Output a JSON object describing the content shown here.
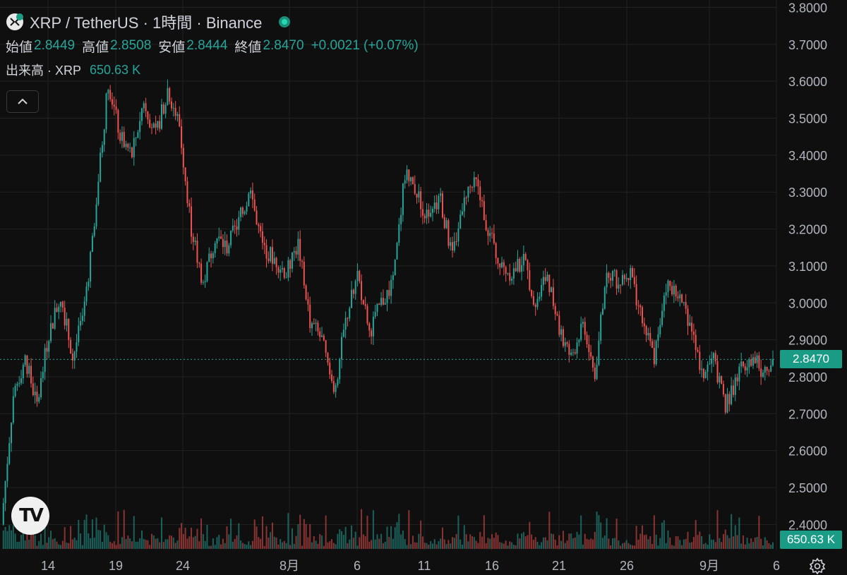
{
  "header": {
    "symbol_title": "XRP / TetherUS · 1時間 · Binance",
    "ohlc": [
      {
        "label": "始値",
        "value": "2.8449"
      },
      {
        "label": "高値",
        "value": "2.8508"
      },
      {
        "label": "安値",
        "value": "2.8444"
      },
      {
        "label": "終値",
        "value": "2.8470"
      }
    ],
    "change": "+0.0021 (+0.07%)",
    "volume_label": "出来高 · XRP",
    "volume_value": "650.63 K",
    "icons": [
      "symbol-logo-icon",
      "live-status-icon",
      "chevron-up-icon",
      "tradingview-logo-icon",
      "settings-gear-icon"
    ]
  },
  "colors": {
    "up": "#26a69a",
    "down": "#ef5350",
    "background": "#0f0f0f",
    "grid": "#222222",
    "price_tag": "#1a9b86"
  },
  "chart_data": {
    "type": "candlestick",
    "title": "XRP / TetherUS · 1時間 · Binance",
    "interval": "1時間",
    "y_axis": {
      "position": "right",
      "min": 2.33,
      "max": 3.82,
      "ticks": [
        "3.8000",
        "3.7000",
        "3.6000",
        "3.5000",
        "3.4000",
        "3.3000",
        "3.2000",
        "3.1000",
        "3.0000",
        "2.9000",
        "2.8000",
        "2.7000",
        "2.6000",
        "2.5000",
        "2.4000"
      ]
    },
    "x_axis": {
      "tick_labels": [
        "14",
        "19",
        "24",
        "8月",
        "6",
        "11",
        "16",
        "21",
        "26",
        "9月",
        "6"
      ]
    },
    "grid": true,
    "last_price": "2.8470",
    "last_volume": "650.63 K",
    "price_path": [
      [
        "14",
        2.4
      ],
      [
        "14",
        2.75
      ],
      [
        "14",
        2.85
      ],
      [
        "14",
        2.72
      ],
      [
        "14",
        2.92
      ],
      [
        "14",
        3.02
      ],
      [
        "14",
        2.85
      ],
      [
        "19",
        2.98
      ],
      [
        "19",
        3.28
      ],
      [
        "19",
        3.6
      ],
      [
        "19",
        3.45
      ],
      [
        "19",
        3.4
      ],
      [
        "19",
        3.55
      ],
      [
        "19",
        3.45
      ],
      [
        "24",
        3.58
      ],
      [
        "24",
        3.48
      ],
      [
        "24",
        3.2
      ],
      [
        "24",
        3.05
      ],
      [
        "24",
        3.18
      ],
      [
        "24",
        3.15
      ],
      [
        "24",
        3.22
      ],
      [
        "24",
        3.3
      ],
      [
        "24",
        3.15
      ],
      [
        "8月",
        3.12
      ],
      [
        "8月",
        3.08
      ],
      [
        "8月",
        3.16
      ],
      [
        "8月",
        2.95
      ],
      [
        "8月",
        2.9
      ],
      [
        "8月",
        2.75
      ],
      [
        "6",
        2.95
      ],
      [
        "6",
        3.08
      ],
      [
        "6",
        2.92
      ],
      [
        "6",
        3.0
      ],
      [
        "6",
        3.05
      ],
      [
        "6",
        3.35
      ],
      [
        "11",
        3.3
      ],
      [
        "11",
        3.22
      ],
      [
        "11",
        3.28
      ],
      [
        "11",
        3.12
      ],
      [
        "11",
        3.3
      ],
      [
        "11",
        3.32
      ],
      [
        "11",
        3.2
      ],
      [
        "16",
        3.1
      ],
      [
        "16",
        3.08
      ],
      [
        "16",
        3.12
      ],
      [
        "16",
        3.0
      ],
      [
        "16",
        3.08
      ],
      [
        "16",
        2.92
      ],
      [
        "21",
        2.85
      ],
      [
        "21",
        2.95
      ],
      [
        "21",
        2.8
      ],
      [
        "21",
        3.1
      ],
      [
        "21",
        3.05
      ],
      [
        "21",
        3.08
      ],
      [
        "21",
        2.95
      ],
      [
        "26",
        2.85
      ],
      [
        "26",
        3.05
      ],
      [
        "26",
        3.02
      ],
      [
        "26",
        2.95
      ],
      [
        "26",
        2.8
      ],
      [
        "9月",
        2.85
      ],
      [
        "9月",
        2.72
      ],
      [
        "9月",
        2.8
      ],
      [
        "9月",
        2.86
      ],
      [
        "9月",
        2.82
      ],
      [
        "6",
        2.847
      ]
    ]
  }
}
